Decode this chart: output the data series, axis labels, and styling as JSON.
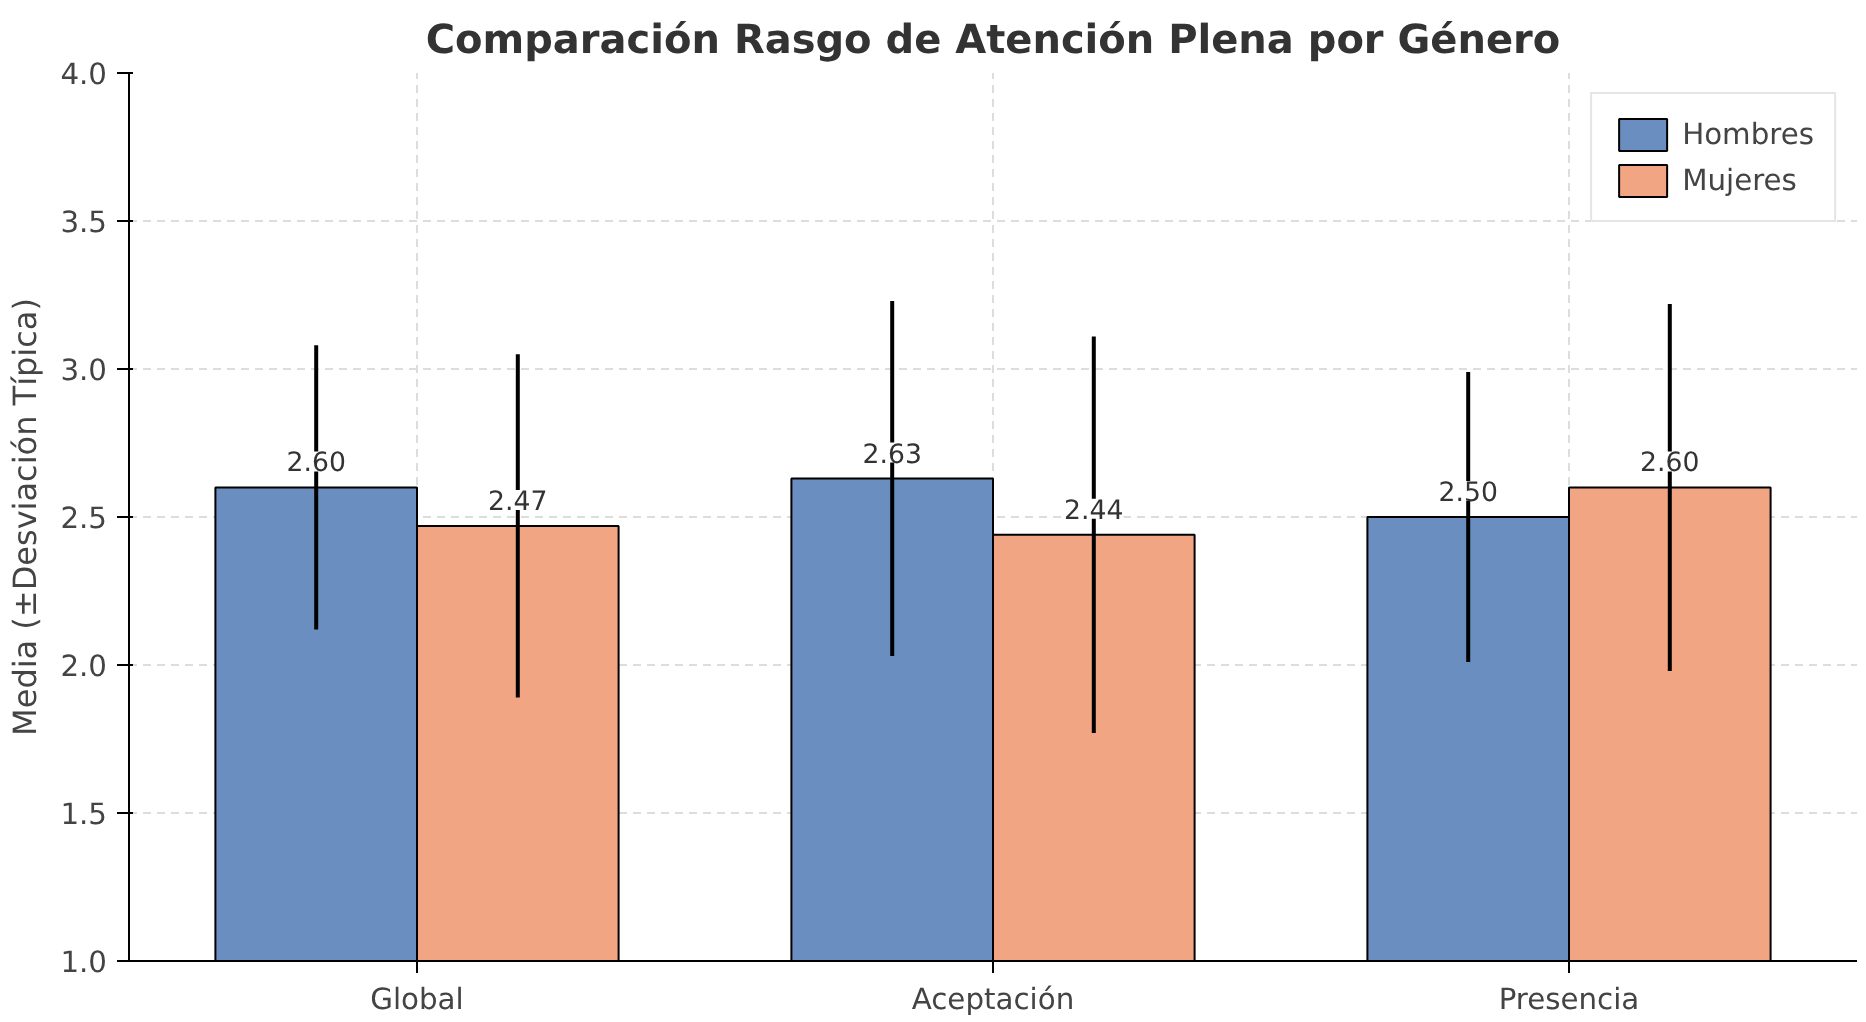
{
  "chart_data": {
    "type": "bar",
    "title": "Comparación Rasgo de Atención Plena por Género",
    "ylabel": "Media (±Desviación Típica)",
    "categories": [
      "Global",
      "Aceptación",
      "Presencia"
    ],
    "series": [
      {
        "name": "Hombres",
        "color": "#6a8ebf",
        "values": [
          2.6,
          2.63,
          2.5
        ],
        "value_labels": [
          "2.60",
          "2.63",
          "2.50"
        ],
        "errors": [
          0.48,
          0.6,
          0.49
        ]
      },
      {
        "name": "Mujeres",
        "color": "#f2a582",
        "values": [
          2.47,
          2.44,
          2.6
        ],
        "value_labels": [
          "2.47",
          "2.44",
          "2.60"
        ],
        "errors": [
          0.58,
          0.67,
          0.62
        ]
      }
    ],
    "ylim": [
      1.0,
      4.0
    ],
    "yticks": [
      {
        "value": 1,
        "label": "1.0"
      },
      {
        "value": 1.5,
        "label": "1.5"
      },
      {
        "value": 2,
        "label": "2.0"
      },
      {
        "value": 2.5,
        "label": "2.5"
      },
      {
        "value": 3,
        "label": "3.0"
      },
      {
        "value": 3.5,
        "label": "3.5"
      },
      {
        "value": 4,
        "label": "4.0"
      }
    ],
    "grid": true,
    "legend": "top right"
  }
}
